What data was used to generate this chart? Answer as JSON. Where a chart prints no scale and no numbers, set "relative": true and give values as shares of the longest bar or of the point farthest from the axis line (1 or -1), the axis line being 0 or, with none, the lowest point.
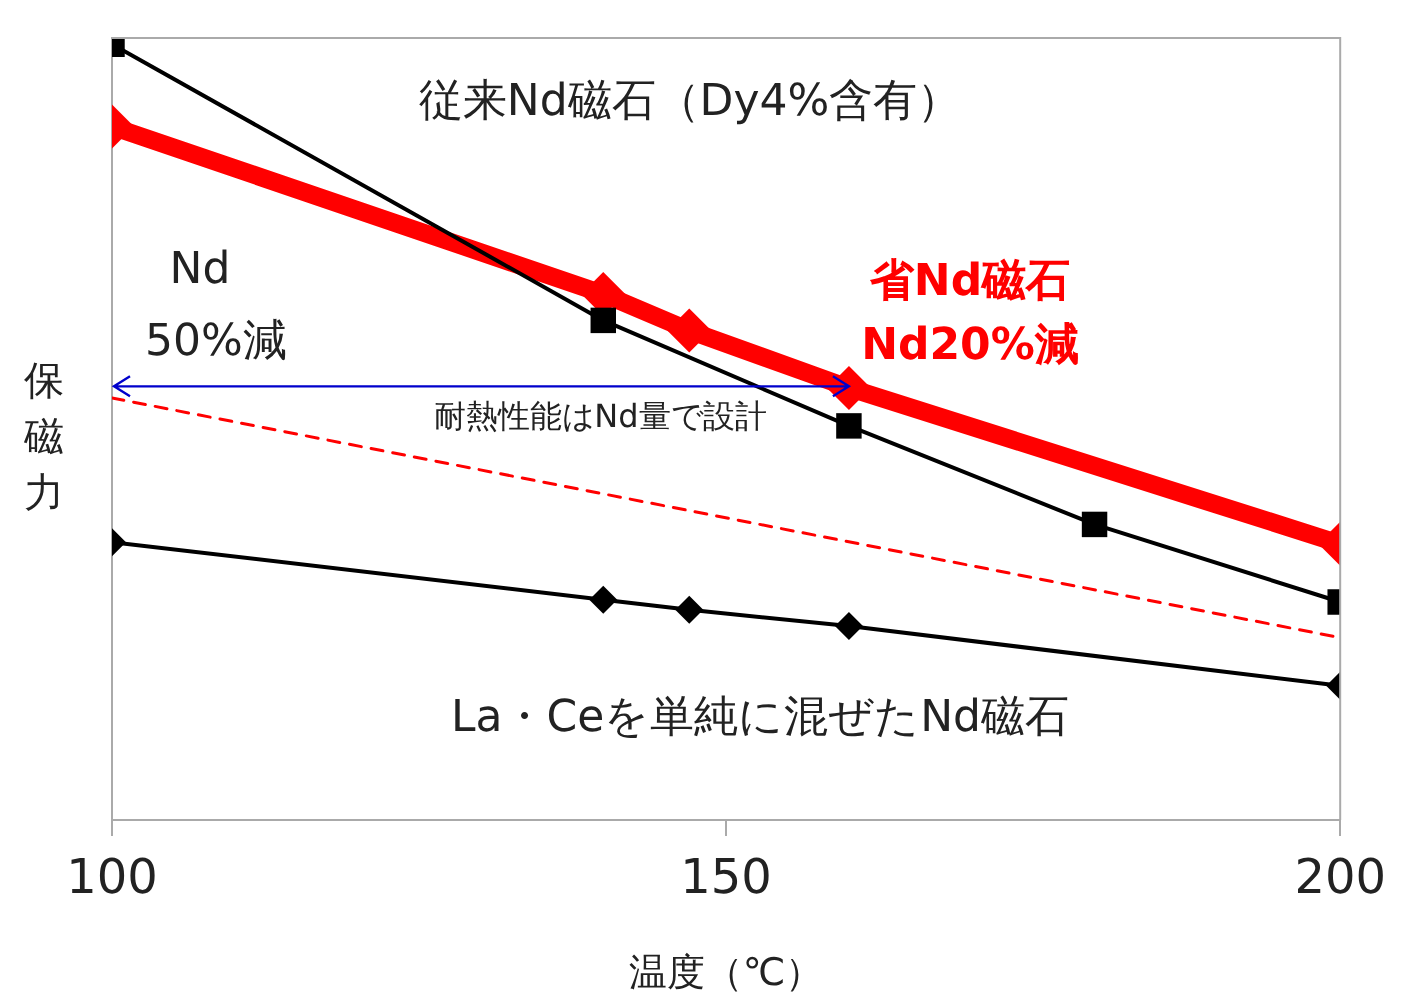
{
  "chart_data": {
    "type": "line",
    "relative": true,
    "xlabel": "温度（℃）",
    "ylabel": "保磁力",
    "xlim": [
      100,
      200
    ],
    "xticks": [
      100,
      150,
      200
    ],
    "grid": false,
    "legend": false,
    "series": [
      {
        "name": "従来Nd磁石（Dy4%含有）",
        "color": "#000000",
        "marker": "square",
        "x": [
          100,
          140,
          160,
          180,
          200
        ],
        "values": [
          1.0,
          0.644,
          0.508,
          0.381,
          0.281
        ]
      },
      {
        "name": "省Nd磁石\nNd20%減",
        "color": "#ff0000",
        "marker": "diamond",
        "x": [
          100,
          140,
          147,
          160,
          200
        ],
        "values": [
          0.894,
          0.678,
          0.631,
          0.557,
          0.356
        ]
      },
      {
        "name": "La・Ceを単純に混ぜたNd磁石",
        "color": "#000000",
        "marker": "diamond",
        "x": [
          100,
          140,
          147,
          160,
          200
        ],
        "values": [
          0.358,
          0.284,
          0.271,
          0.25,
          0.173
        ]
      },
      {
        "color": "#ff0000",
        "marker": "none",
        "line_style": "dashed",
        "x": [
          100,
          200
        ],
        "values": [
          0.544,
          0.235
        ]
      }
    ],
    "annotations": [
      "Nd\n50%減",
      {
        "text": "耐熱性能はNd量で設計",
        "x": 160,
        "y": 0.559
      }
    ]
  }
}
